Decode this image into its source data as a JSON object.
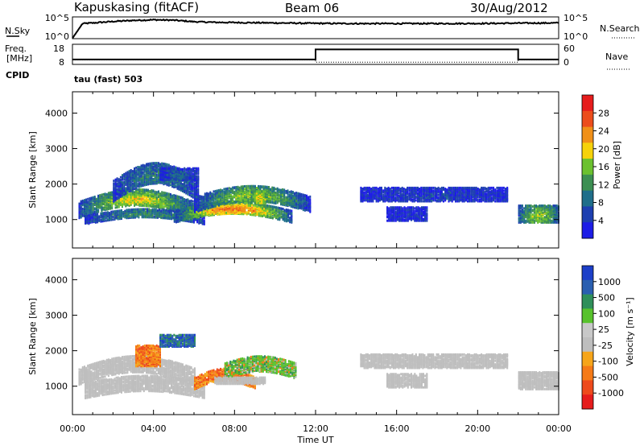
{
  "header": {
    "station": "Kapuskasing (fitACF)",
    "beam": "Beam 06",
    "date": "30/Aug/2012"
  },
  "status_panel": {
    "nsky_label": "N.Sky",
    "nsky_ticks": [
      "10^5",
      "10^0"
    ],
    "nsearch_label": "N.Search",
    "nsearch_ticks": [
      "10^5",
      "10^0"
    ],
    "freq_label_1": "Freq.",
    "freq_label_2": "[MHz]",
    "freq_ticks": [
      "18",
      "8"
    ],
    "nave_label": "Nave",
    "nave_ticks": [
      "60",
      "0"
    ],
    "cpid_label": "CPID",
    "cpid_value": "tau (fast) 503"
  },
  "x_axis": {
    "label": "Time UT",
    "ticks": [
      "00:00",
      "04:00",
      "08:00",
      "12:00",
      "16:00",
      "20:00",
      "00:00"
    ]
  },
  "colors": {
    "power": [
      "#1c1ce6",
      "#1d3fb0",
      "#1f6e8a",
      "#3c8f52",
      "#6bc12f",
      "#f6d20a",
      "#f09018",
      "#ec4d1c",
      "#e61c1c"
    ],
    "velocity": [
      "#e61c1c",
      "#ee4a1c",
      "#f57a17",
      "#f6a51a",
      "#bebebe",
      "#c8c8c8",
      "#58c22c",
      "#2f8f5a",
      "#2a5fb0",
      "#1c3fc8"
    ],
    "ground": "#bebebe"
  },
  "chart_data": [
    {
      "type": "line",
      "panel": "noise",
      "series": [
        {
          "name": "N.Sky",
          "style": "solid",
          "x_hours": [
            0,
            0.5,
            1,
            2,
            3,
            4,
            5,
            6,
            7,
            8,
            10,
            12,
            14,
            16,
            18,
            20,
            21,
            22,
            23,
            24
          ],
          "log_value": [
            0.1,
            3.6,
            3.75,
            4.1,
            4.35,
            4.5,
            4.4,
            4.05,
            3.9,
            3.85,
            3.75,
            3.65,
            3.6,
            3.6,
            3.6,
            3.62,
            3.65,
            3.7,
            3.72,
            3.75
          ]
        },
        {
          "name": "N.Search",
          "style": "dotted",
          "x_hours": [
            0,
            24
          ],
          "log_value": [
            0,
            0
          ]
        }
      ],
      "yscale": "log",
      "ylim_log": [
        0,
        5
      ]
    },
    {
      "type": "line",
      "panel": "frequency",
      "series": [
        {
          "name": "Freq.",
          "style": "solid",
          "unit": "MHz",
          "x_hours": [
            0,
            12,
            12,
            22,
            22,
            24
          ],
          "values": [
            10.3,
            10.3,
            16,
            16,
            10.3,
            10.3
          ]
        },
        {
          "name": "Nave",
          "style": "dotted",
          "x_hours": [
            0,
            12,
            12,
            22,
            22,
            24
          ],
          "values": [
            13,
            13,
            5,
            5,
            13,
            13
          ]
        }
      ],
      "ylim_freq": [
        8,
        18
      ],
      "ylim_nave": [
        0,
        60
      ]
    },
    {
      "type": "heatmap",
      "parameter": "power",
      "ylabel": "Slant Range [km]",
      "xlabel": "Time UT",
      "xlim_hours": [
        0,
        24
      ],
      "ylim_km": [
        200,
        4600
      ],
      "yticks": [
        1000,
        2000,
        3000,
        4000
      ],
      "colorbar": {
        "label": "Power [dB]",
        "ticks": [
          "4",
          "8",
          "12",
          "16",
          "20",
          "24",
          "28"
        ],
        "range": [
          0,
          32
        ]
      },
      "regions": [
        {
          "t0": 0.3,
          "t1": 6.0,
          "r0": 1080,
          "r1": 1550,
          "r_drift": 350,
          "v0": 20,
          "v1": 5
        },
        {
          "t0": 0.6,
          "t1": 6.5,
          "r0": 900,
          "r1": 1150,
          "r_drift": 200,
          "v0": 12,
          "v1": 4
        },
        {
          "t0": 2.0,
          "t1": 6.2,
          "r0": 1550,
          "r1": 2150,
          "r_drift": 500,
          "v0": 10,
          "v1": 4
        },
        {
          "t0": 4.3,
          "t1": 6.2,
          "r0": 2150,
          "r1": 2500,
          "r_drift": 0,
          "v0": 8,
          "v1": 3
        },
        {
          "t0": 5.0,
          "t1": 10.8,
          "r0": 950,
          "r1": 1300,
          "r_drift": 250,
          "v0": 26,
          "v1": 6
        },
        {
          "t0": 6.0,
          "t1": 11.7,
          "r0": 1250,
          "r1": 1700,
          "r_drift": 300,
          "v0": 18,
          "v1": 4
        },
        {
          "t0": 8.8,
          "t1": 9.6,
          "r0": 1500,
          "r1": 1850,
          "r_drift": 0,
          "v0": 20,
          "v1": 12
        },
        {
          "t0": 14.2,
          "t1": 21.5,
          "r0": 1550,
          "r1": 1950,
          "r_drift": 0,
          "v0": 5,
          "v1": 3
        },
        {
          "t0": 15.5,
          "t1": 17.5,
          "r0": 1000,
          "r1": 1400,
          "r_drift": 0,
          "v0": 4,
          "v1": 2
        },
        {
          "t0": 22.0,
          "t1": 24.0,
          "r0": 950,
          "r1": 1450,
          "r_drift": 0,
          "v0": 18,
          "v1": 6
        }
      ]
    },
    {
      "type": "heatmap",
      "parameter": "velocity",
      "ylabel": "Slant Range [km]",
      "xlabel": "Time UT",
      "xlim_hours": [
        0,
        24
      ],
      "ylim_km": [
        200,
        4600
      ],
      "yticks": [
        1000,
        2000,
        3000,
        4000
      ],
      "colorbar": {
        "label": "Velocity [m s⁻¹]",
        "ticks": [
          "1000",
          "500",
          "100",
          "25",
          "-25",
          "-100",
          "-500",
          "-1000"
        ]
      },
      "regions": [
        {
          "t0": 0.3,
          "t1": 6.0,
          "r0": 1080,
          "r1": 1550,
          "r_drift": 350,
          "class": "ground"
        },
        {
          "t0": 0.6,
          "t1": 6.5,
          "r0": 700,
          "r1": 1150,
          "r_drift": 200,
          "class": "ground"
        },
        {
          "t0": 3.1,
          "t1": 4.3,
          "r0": 1600,
          "r1": 2200,
          "r_drift": 0,
          "class": "negative"
        },
        {
          "t0": 4.3,
          "t1": 6.0,
          "r0": 2150,
          "r1": 2500,
          "r_drift": 0,
          "class": "positive"
        },
        {
          "t0": 6.0,
          "t1": 9.0,
          "r0": 950,
          "r1": 1300,
          "r_drift": 250,
          "class": "negative"
        },
        {
          "t0": 7.5,
          "t1": 11.0,
          "r0": 1250,
          "r1": 1700,
          "r_drift": 200,
          "class": "mixed"
        },
        {
          "t0": 7.0,
          "t1": 9.5,
          "r0": 1100,
          "r1": 1300,
          "r_drift": 0,
          "class": "ground"
        },
        {
          "t0": 14.2,
          "t1": 21.5,
          "r0": 1550,
          "r1": 1950,
          "r_drift": 0,
          "class": "ground"
        },
        {
          "t0": 15.5,
          "t1": 17.5,
          "r0": 1000,
          "r1": 1400,
          "r_drift": 0,
          "class": "ground"
        },
        {
          "t0": 22.0,
          "t1": 24.0,
          "r0": 950,
          "r1": 1450,
          "r_drift": 0,
          "class": "ground"
        }
      ]
    }
  ]
}
